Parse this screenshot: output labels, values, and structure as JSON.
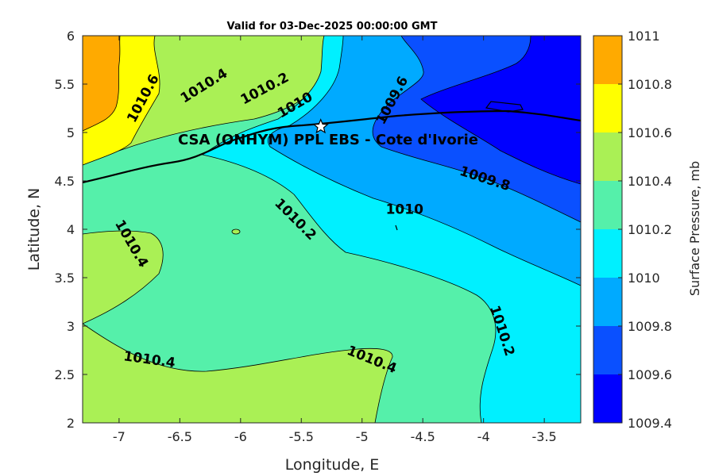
{
  "title": "Valid for 03-Dec-2025 00:00:00 GMT",
  "xlabel": "Longitude, E",
  "ylabel": "Latitude, N",
  "site_label": "CSA (ONHYM) PPL EBS  - Cote d'Ivorie",
  "colorbar_label": "Surface Pressure, mb",
  "colorbar": {
    "levels": [
      "1009.4",
      "1009.6",
      "1009.8",
      "1010",
      "1010.2",
      "1010.4",
      "1010.6",
      "1010.8",
      "1011"
    ],
    "colors": [
      "#0000ff",
      "#0a50ff",
      "#00aaff",
      "#00f0ff",
      "#55f0aa",
      "#aaf055",
      "#ffff00",
      "#ffaa00",
      "#ff5500"
    ]
  },
  "chart_data": {
    "type": "contour",
    "title": "Valid for 03-Dec-2025 00:00:00 GMT",
    "xlabel": "Longitude, E",
    "ylabel": "Latitude, N",
    "xlim": [
      -7.3,
      -3.2
    ],
    "ylim": [
      2,
      6
    ],
    "x_ticks": [
      -7,
      -6.5,
      -6,
      -5.5,
      -5,
      -4.5,
      -4,
      -3.5
    ],
    "x_tick_labels": [
      "-7",
      "-6.5",
      "-6",
      "-5.5",
      "-5",
      "-4.5",
      "-4",
      "-3.5"
    ],
    "y_ticks": [
      2,
      2.5,
      3,
      3.5,
      4,
      4.5,
      5,
      5.5,
      6
    ],
    "y_tick_labels": [
      "2",
      "2.5",
      "3",
      "3.5",
      "4",
      "4.5",
      "5",
      "5.5",
      "6"
    ],
    "contour_levels": [
      1009.4,
      1009.6,
      1009.8,
      1010,
      1010.2,
      1010.4,
      1010.6,
      1010.8,
      1011
    ],
    "contour_labels": [
      {
        "text": "1010.6",
        "lon": -6.8,
        "lat": 5.35
      },
      {
        "text": "1010.4",
        "lon": -6.3,
        "lat": 5.48
      },
      {
        "text": "1010.2",
        "lon": -5.8,
        "lat": 5.45
      },
      {
        "text": "1010",
        "lon": -5.55,
        "lat": 5.28
      },
      {
        "text": "1009.6",
        "lon": -4.75,
        "lat": 5.33
      },
      {
        "text": "1009.8",
        "lon": -3.99,
        "lat": 4.52
      },
      {
        "text": "1010",
        "lon": -4.65,
        "lat": 4.2
      },
      {
        "text": "1010.2",
        "lon": -5.55,
        "lat": 4.1
      },
      {
        "text": "1010.4",
        "lon": -6.9,
        "lat": 3.85
      },
      {
        "text": "1010.4",
        "lon": -6.75,
        "lat": 2.65
      },
      {
        "text": "1010.4",
        "lon": -4.92,
        "lat": 2.65
      },
      {
        "text": "1010.2",
        "lon": -3.85,
        "lat": 2.95
      }
    ],
    "site": {
      "name": "CSA (ONHYM) PPL EBS  - Cote d'Ivorie",
      "lon": -5.34,
      "lat": 5.06
    },
    "colorbar_label": "Surface Pressure, mb"
  }
}
